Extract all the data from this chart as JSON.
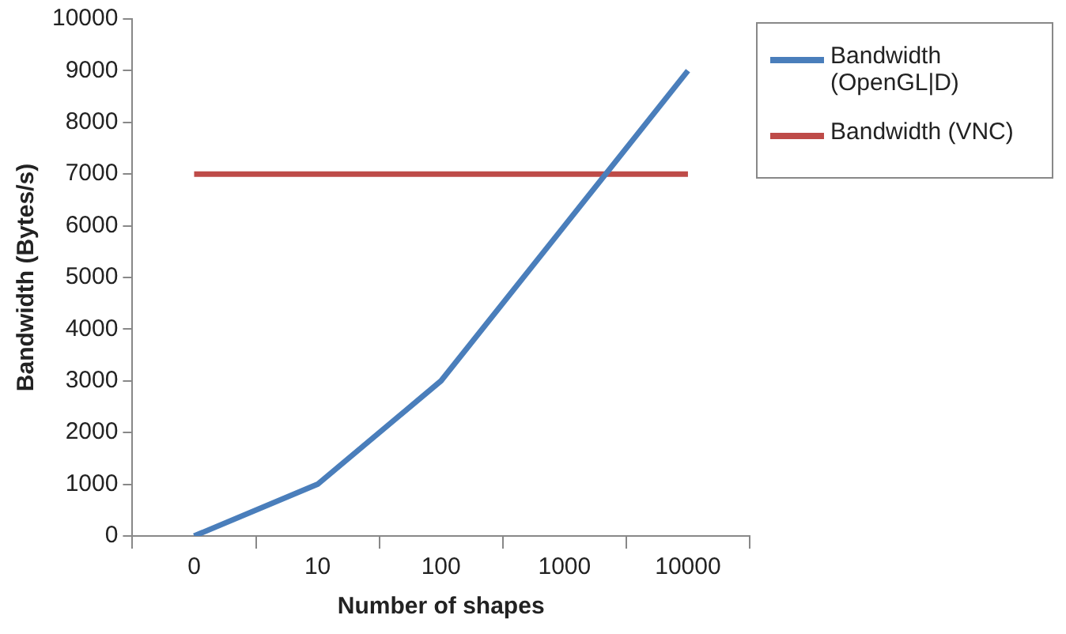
{
  "chart_data": {
    "type": "line",
    "xlabel": "Number of shapes",
    "ylabel": "Bandwidth (Bytes/s)",
    "categories": [
      "0",
      "10",
      "100",
      "1000",
      "10000"
    ],
    "series": [
      {
        "name": "Bandwidth (OpenGL|D)",
        "color": "#4a7ebb",
        "values": [
          0,
          1000,
          3000,
          6000,
          9000
        ]
      },
      {
        "name": "Bandwidth (VNC)",
        "color": "#be4b48",
        "values": [
          7000,
          7000,
          7000,
          7000,
          7000
        ]
      }
    ],
    "ylim": [
      0,
      10000
    ],
    "yticks": [
      0,
      1000,
      2000,
      3000,
      4000,
      5000,
      6000,
      7000,
      8000,
      9000,
      10000
    ],
    "grid": false,
    "legend": "right",
    "marker": "none",
    "line_style": "solid"
  }
}
